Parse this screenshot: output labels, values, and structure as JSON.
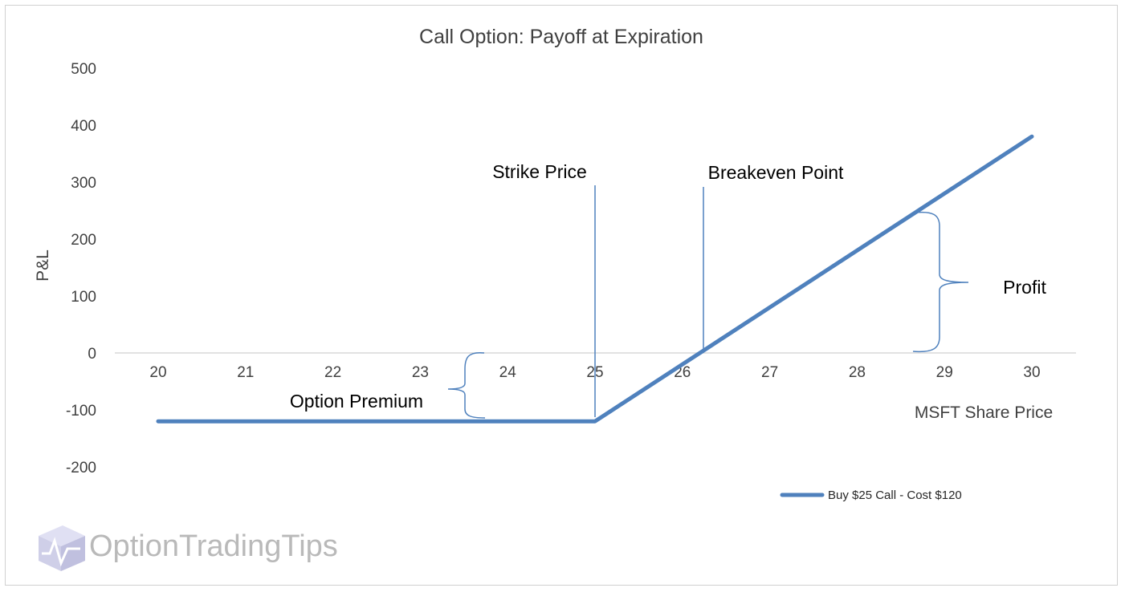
{
  "chart_data": {
    "type": "line",
    "title": "Call Option: Payoff at Expiration",
    "xlabel": "MSFT Share Price",
    "ylabel": "P&L",
    "x_ticks": [
      "20",
      "21",
      "22",
      "23",
      "24",
      "25",
      "26",
      "27",
      "28",
      "29",
      "30"
    ],
    "y_ticks": [
      "500",
      "400",
      "300",
      "200",
      "100",
      "0",
      "-100",
      "-200"
    ],
    "xlim": [
      20,
      30
    ],
    "ylim": [
      -200,
      500
    ],
    "grid": false,
    "legend_position": "bottom-right",
    "series": [
      {
        "name": "Buy $25 Call - Cost $120",
        "color": "#4f81bd",
        "points": [
          [
            20,
            -120
          ],
          [
            25,
            -120
          ],
          [
            30,
            380
          ]
        ]
      }
    ],
    "annotations": {
      "strike": {
        "text": "Strike Price",
        "x": 25
      },
      "breakeven": {
        "text": "Breakeven Point",
        "x": 26.2
      },
      "premium": {
        "text": "Option Premium"
      },
      "profit": {
        "text": "Profit"
      }
    }
  },
  "watermark": {
    "brand": "OptionTradingTips",
    "icon": "cube-logo-icon"
  }
}
